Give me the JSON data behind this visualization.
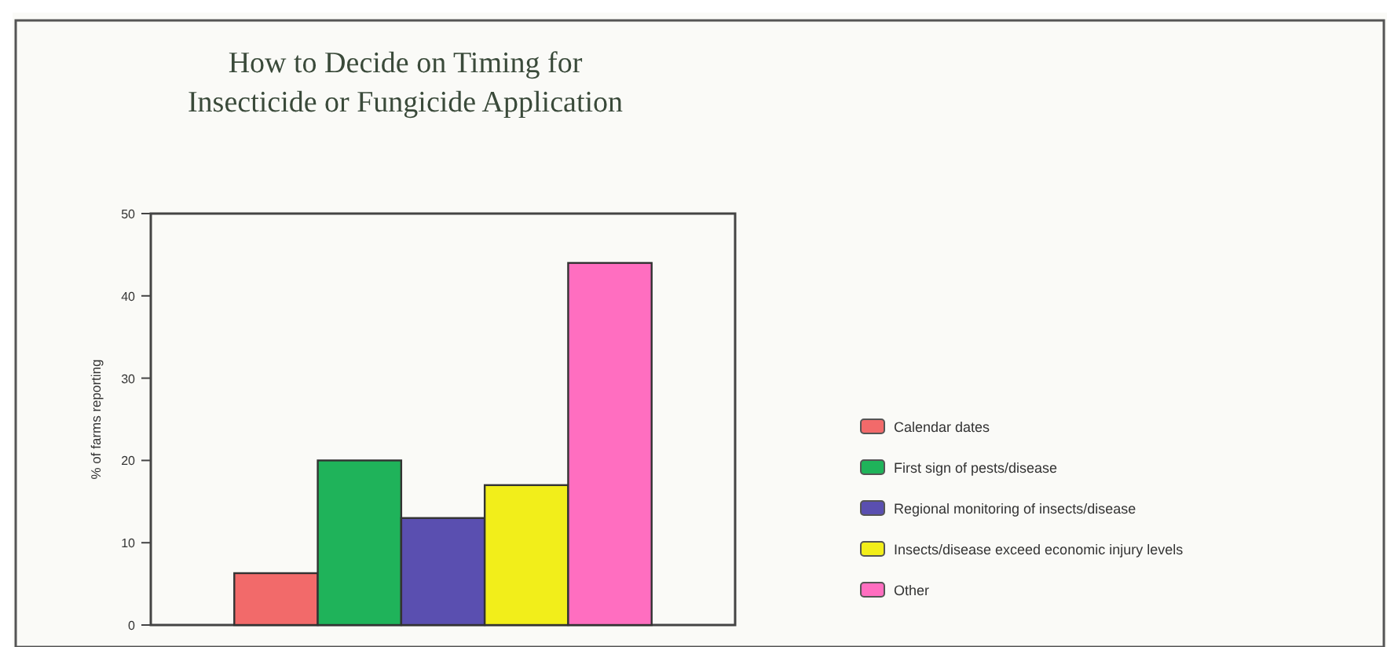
{
  "chart_data": {
    "type": "bar",
    "title": "How to Decide on Timing for\nInsecticide or Fungicide Application",
    "ylabel": "% of farms reporting",
    "categories": [
      null
    ],
    "series": [
      {
        "name": "Calendar dates",
        "color": "#f26a6a",
        "values": [
          6.3
        ]
      },
      {
        "name": "First sign of pests/disease",
        "color": "#1fb35a",
        "values": [
          20
        ]
      },
      {
        "name": "Regional monitoring of insects/disease",
        "color": "#5a4fb0",
        "values": [
          13
        ]
      },
      {
        "name": "Insects/disease exceed economic injury levels",
        "color": "#f2ee1a",
        "values": [
          17
        ]
      },
      {
        "name": "Other",
        "color": "#ff6ec0",
        "values": [
          44
        ]
      }
    ],
    "ylim": [
      0,
      50
    ],
    "yticks": [
      0,
      10,
      20,
      30,
      40,
      50
    ],
    "grid": false,
    "legend": "right"
  }
}
